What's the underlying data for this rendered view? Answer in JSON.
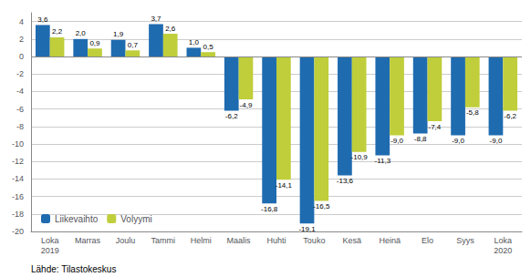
{
  "chart_data": {
    "type": "bar",
    "categories": [
      "Loka\n2019",
      "Marras",
      "Joulu",
      "Tammi",
      "Helmi",
      "Maalis",
      "Huhti",
      "Touko",
      "Kesä",
      "Heinä",
      "Elo",
      "Syys",
      "Loka\n2020"
    ],
    "series": [
      {
        "name": "Liikevaihto",
        "color": "#1F6BB0",
        "values": [
          3.6,
          2.0,
          1.9,
          3.7,
          1.0,
          -6.2,
          -16.8,
          -19.1,
          -13.6,
          -11.3,
          -8.8,
          -9.0,
          -9.0
        ],
        "value_labels": [
          "3,6",
          "2,0",
          "1,9",
          "3,7",
          "1,0",
          "-6,2",
          "-16,8",
          "-19,1",
          "-13,6",
          "-11,3",
          "-8,8",
          "-9,0",
          "-9,0"
        ]
      },
      {
        "name": "Volyymi",
        "color": "#BFCE3A",
        "values": [
          2.2,
          0.9,
          0.7,
          2.6,
          0.5,
          -4.9,
          -14.1,
          -16.5,
          -10.9,
          -9.0,
          -7.4,
          -5.8,
          -6.2
        ],
        "value_labels": [
          "2,2",
          "0,9",
          "0,7",
          "2,6",
          "0,5",
          "-4,9",
          "-14,1",
          "-16,5",
          "-10,9",
          "-9,0",
          "-7,4",
          "-5,8",
          "-6,2"
        ]
      }
    ],
    "ylim": [
      -20,
      5
    ],
    "yticks": [
      -20,
      -18,
      -16,
      -14,
      -12,
      -10,
      -8,
      -6,
      -4,
      -2,
      0,
      2,
      4
    ],
    "grid": true,
    "legend": "lower left",
    "data_labels": true,
    "annotations": [
      "Lähde: Tilastokeskus"
    ]
  }
}
